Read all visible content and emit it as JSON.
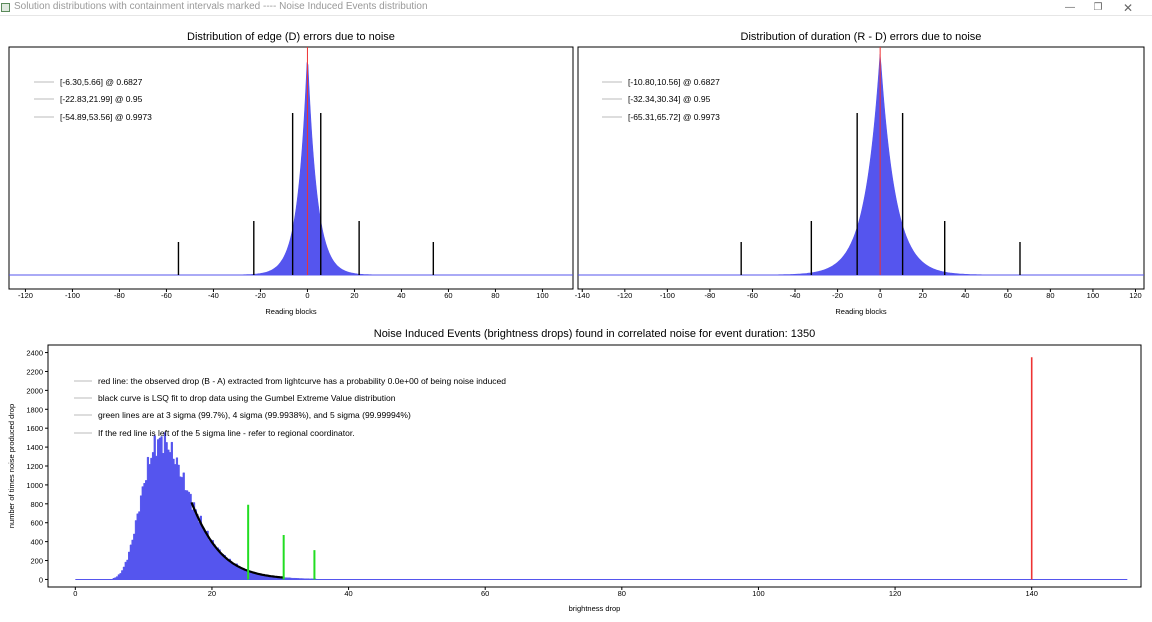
{
  "window": {
    "title": "Solution distributions with containment intervals marked  ---- Noise Induced Events distribution",
    "minimize_glyph": "—",
    "maximize_glyph": "❐",
    "close_glyph": "✕"
  },
  "colors": {
    "histogram": "#5555ee",
    "marker": "#ee3333",
    "interval_line": "#000000",
    "sigma_line": "#22dd22"
  },
  "chart_data": [
    {
      "type": "bar",
      "title": "Distribution of edge (D) errors due to noise",
      "xlabel": "Reading blocks",
      "ylabel": "",
      "xlim": [
        -127,
        113
      ],
      "x_ticks": [
        -120,
        -100,
        -80,
        -60,
        -40,
        -20,
        0,
        20,
        40,
        60,
        80,
        100
      ],
      "grid": false,
      "legend_position": "top-left",
      "distribution": {
        "center": 0,
        "scale": 4.0,
        "peak": 1.0
      },
      "observed_marker_x": 0,
      "legend": [
        {
          "text": "[-6.30,5.66] @ 0.6827"
        },
        {
          "text": "[-22.83,21.99] @ 0.95"
        },
        {
          "text": "[-54.89,53.56] @ 0.9973"
        }
      ],
      "intervals": [
        {
          "low": -6.3,
          "high": 5.66,
          "level": 0.6827
        },
        {
          "low": -22.83,
          "high": 21.99,
          "level": 0.95
        },
        {
          "low": -54.89,
          "high": 53.56,
          "level": 0.9973
        }
      ]
    },
    {
      "type": "bar",
      "title": "Distribution of duration (R - D) errors due to noise",
      "xlabel": "Reading blocks",
      "ylabel": "",
      "xlim": [
        -142,
        124
      ],
      "x_ticks": [
        -140,
        -120,
        -100,
        -80,
        -60,
        -40,
        -20,
        0,
        20,
        40,
        60,
        80,
        100,
        120
      ],
      "grid": false,
      "legend_position": "top-left",
      "distribution": {
        "center": 0,
        "scale": 7.0,
        "peak": 1.0
      },
      "observed_marker_x": 0,
      "legend": [
        {
          "text": "[-10.80,10.56] @ 0.6827"
        },
        {
          "text": "[-32.34,30.34] @ 0.95"
        },
        {
          "text": "[-65.31,65.72] @ 0.9973"
        }
      ],
      "intervals": [
        {
          "low": -10.8,
          "high": 10.56,
          "level": 0.6827
        },
        {
          "low": -32.34,
          "high": 30.34,
          "level": 0.95
        },
        {
          "low": -65.31,
          "high": 65.72,
          "level": 0.9973
        }
      ]
    },
    {
      "type": "bar",
      "title": "Noise Induced Events (brightness drops) found in correlated noise for event duration: 1350",
      "xlabel": "brightness drop",
      "ylabel": "number of times noise produced drop",
      "xlim": [
        -4,
        156
      ],
      "ylim": [
        -80,
        2480
      ],
      "x_ticks": [
        0,
        20,
        40,
        60,
        80,
        100,
        120,
        140
      ],
      "y_ticks": [
        0,
        200,
        400,
        600,
        800,
        1000,
        1200,
        1400,
        1600,
        1800,
        2000,
        2200,
        2400
      ],
      "grid": false,
      "legend_position": "top-left",
      "legend": [
        {
          "text": "red line: the observed drop (B - A) extracted from lightcurve has a probability 0.0e+00 of being noise induced"
        },
        {
          "text": "black curve is LSQ fit to drop data using the Gumbel Extreme Value distribution"
        },
        {
          "text": "green lines are at 3 sigma (99.7%), 4 sigma (99.9938%), and 5 sigma (99.99994%)"
        },
        {
          "text": "If the red line is left of the 5 sigma line - refer to regional coordinator."
        }
      ],
      "histogram": {
        "mu": 12.5,
        "beta": 3.4,
        "peak": 1470,
        "xmin": 5.5,
        "xmax": 35
      },
      "gumbel_fit": {
        "mu": 12.5,
        "beta": 3.4,
        "peak": 1470,
        "from": 17,
        "to": 30.5
      },
      "sigma_lines": [
        {
          "label": "3 sigma",
          "x": 25.3,
          "height": 790
        },
        {
          "label": "4 sigma",
          "x": 30.5,
          "height": 470
        },
        {
          "label": "5 sigma",
          "x": 35.0,
          "height": 310
        }
      ],
      "observed_drop": {
        "x": 140,
        "height": 2350
      },
      "baseline": {
        "from": 0,
        "to": 154
      }
    }
  ]
}
